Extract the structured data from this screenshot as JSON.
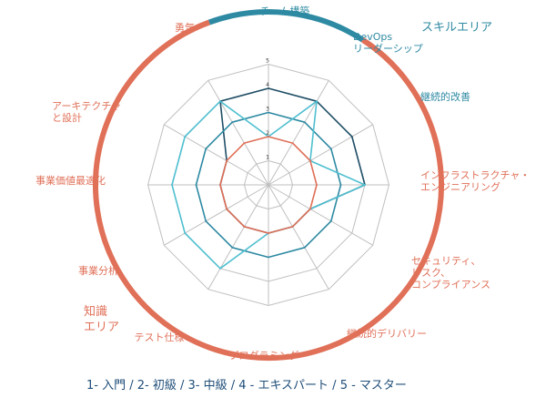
{
  "chart_data": {
    "type": "radar",
    "categories": [
      "チーム構築",
      "DevOps\nリーダーシップ",
      "継続的改善",
      "インフラストラクチャ・\nエンジニアリング",
      "セキュリティ、\nリスク、\nコンプライアンス",
      "継続的デリバリー",
      "プログラミング",
      "テスト仕様",
      "事業分析",
      "事業価値最適化",
      "アーキテクチャ\nと設計",
      "勇気"
    ],
    "r_range": [
      0,
      5
    ],
    "ticks": [
      "1",
      "2",
      "3",
      "4",
      "5"
    ],
    "grid": true,
    "series": [
      {
        "values": [
          4,
          4,
          4,
          4,
          2,
          2,
          2,
          2,
          2,
          2,
          2,
          4
        ],
        "color": "#1f4e66"
      },
      {
        "values": [
          3,
          3,
          3,
          3,
          3,
          3,
          3,
          3,
          3,
          3,
          3,
          3
        ],
        "color": "#2e8aa3"
      },
      {
        "values": [
          2,
          4,
          2,
          4,
          2,
          2,
          2,
          4,
          4,
          4,
          4,
          4
        ],
        "color": "#4fbfd0"
      },
      {
        "values": [
          2,
          2,
          2,
          2,
          2,
          2,
          2,
          2,
          2,
          2,
          2,
          2
        ],
        "color": "#e07058"
      }
    ],
    "areas": [
      {
        "label": "スキルエリア",
        "color": "#2e8aa3"
      },
      {
        "label": "知識\nエリア",
        "color": "#e07058"
      }
    ],
    "scale_legend": "1- 入門 / 2- 初級  / 3- 中級 /  4 - エキスパート / 5 - マスター"
  },
  "colors": {
    "skill_area": "#2e8aa3",
    "knowledge_area": "#e07058",
    "grid": "#bfbfbf",
    "legend_text": "#1f4e79"
  }
}
